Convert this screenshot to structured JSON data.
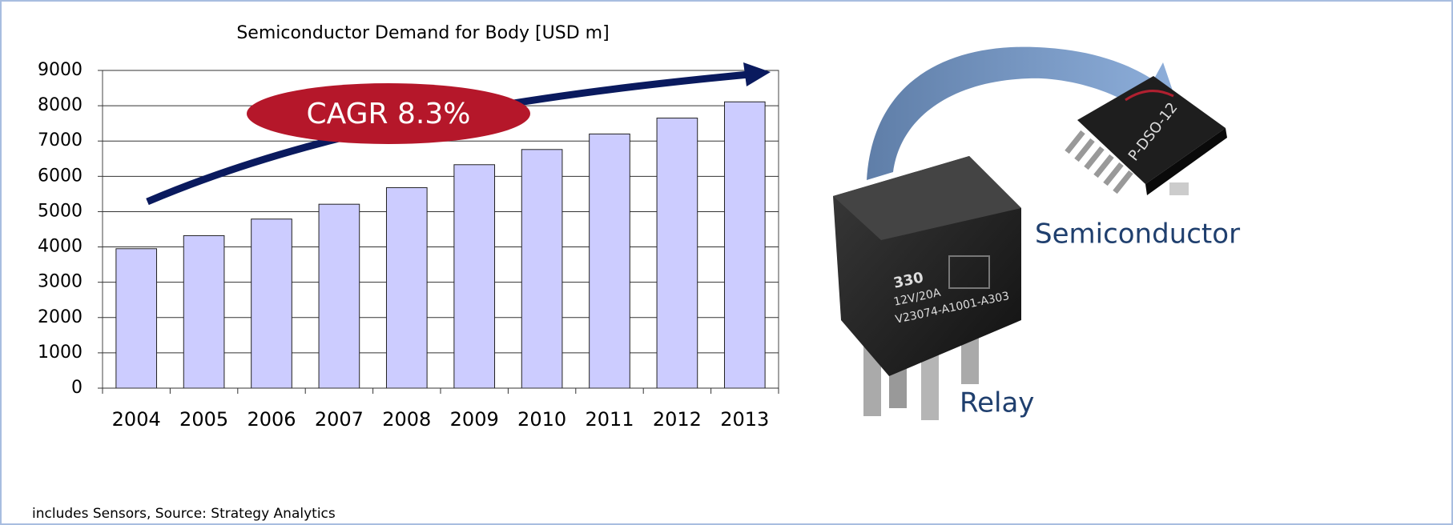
{
  "chart_data": {
    "type": "bar",
    "title": "Semiconductor Demand for Body [USD m]",
    "categories": [
      "2004",
      "2005",
      "2006",
      "2007",
      "2008",
      "2009",
      "2010",
      "2011",
      "2012",
      "2013"
    ],
    "values": [
      3950,
      4320,
      4790,
      5210,
      5680,
      6330,
      6760,
      7200,
      7650,
      8110
    ],
    "color": "#ccccff",
    "ylim": [
      0,
      9000
    ],
    "yticks": [
      0,
      1000,
      2000,
      3000,
      4000,
      5000,
      6000,
      7000,
      8000,
      9000
    ],
    "grid": true,
    "annotation": "CAGR 8.3%",
    "footnote": "includes Sensors, Source: Strategy Analytics",
    "image_labels": {
      "relay": "Relay",
      "semiconductor": "Semiconductor"
    },
    "relay_markings": [
      "330",
      "12V/20A",
      "V23074-A1001-A303"
    ],
    "chip_marking": "P-DSO-12"
  }
}
